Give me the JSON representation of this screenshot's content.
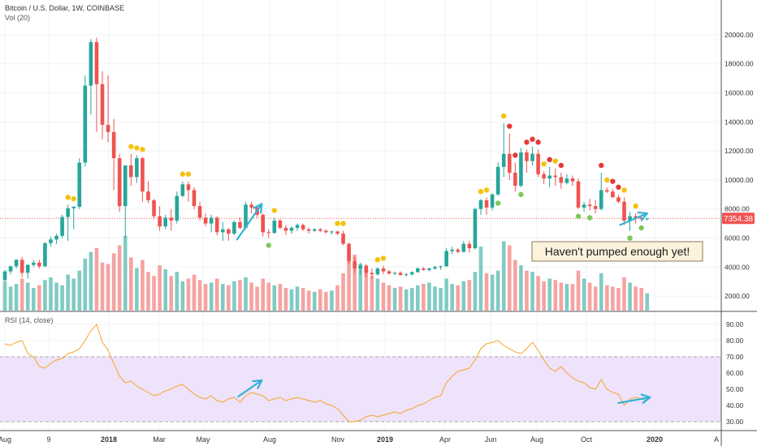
{
  "header": {
    "symbol_line": "Bitcoin / U.S. Dollar, 1W, COINBASE",
    "volume_label": "Vol (20)",
    "rsi_label": "RSI (14, close)"
  },
  "price_badge": "7354.38",
  "annotation": "Haven't pumped enough yet!",
  "colors": {
    "up": "#26a69a",
    "down": "#ef5350",
    "up_volume": "#80cbc4",
    "down_volume": "#f6a3a1",
    "rsi_line": "#f5a623",
    "rsi_band": "#efe2fb",
    "price_line": "#ef5350",
    "arrow": "#2fb3d6",
    "dot_yellow": "#f4c20d",
    "dot_red": "#e53935",
    "dot_green": "#7bc95a"
  },
  "chart_data": [
    {
      "type": "candlestick",
      "title": "Bitcoin / U.S. Dollar, 1W, COINBASE",
      "x_tick_labels": [
        "Aug",
        "9",
        "2018",
        "Mar",
        "May",
        "Aug",
        "Nov",
        "2019",
        "Apr",
        "Jun",
        "Aug",
        "Oct",
        "2020",
        "A"
      ],
      "y_tick_labels": [
        "2000.00",
        "4000.00",
        "6000.00",
        "8000.00",
        "10000.00",
        "12000.00",
        "14000.00",
        "16000.00",
        "18000.00",
        "20000.00"
      ],
      "ylim": [
        1000,
        22400
      ],
      "last_price": 7354.38,
      "ohlc": [
        [
          3100,
          3800,
          3000,
          3700
        ],
        [
          3700,
          4100,
          3500,
          4050
        ],
        [
          4050,
          4550,
          3900,
          4500
        ],
        [
          4500,
          4700,
          3300,
          3600
        ],
        [
          3600,
          4200,
          3200,
          4150
        ],
        [
          4150,
          4500,
          4000,
          4300
        ],
        [
          4300,
          4500,
          3900,
          4050
        ],
        [
          4050,
          5700,
          4000,
          5650
        ],
        [
          5650,
          6100,
          5400,
          5900
        ],
        [
          5900,
          6300,
          5600,
          6150
        ],
        [
          6150,
          7600,
          6000,
          7450
        ],
        [
          7450,
          8300,
          5800,
          8050
        ],
        [
          8050,
          8200,
          6600,
          8150
        ],
        [
          8150,
          11500,
          8000,
          11200
        ],
        [
          11200,
          17200,
          10900,
          16500
        ],
        [
          16500,
          19700,
          14500,
          19500
        ],
        [
          19500,
          19800,
          13300,
          16600
        ],
        [
          16600,
          17500,
          12800,
          13800
        ],
        [
          13800,
          17200,
          12600,
          13300
        ],
        [
          13300,
          14200,
          9300,
          11500
        ],
        [
          11500,
          11800,
          7800,
          8200
        ],
        [
          8200,
          11000,
          6000,
          11000
        ],
        [
          11000,
          11800,
          9600,
          10200
        ],
        [
          10200,
          11700,
          9800,
          11500
        ],
        [
          11500,
          11600,
          8500,
          9200
        ],
        [
          9200,
          9900,
          8400,
          8600
        ],
        [
          8600,
          8700,
          7300,
          7500
        ],
        [
          7500,
          8200,
          6500,
          6800
        ],
        [
          6800,
          7600,
          6600,
          7400
        ],
        [
          7400,
          8000,
          6500,
          7200
        ],
        [
          7200,
          9200,
          7000,
          8900
        ],
        [
          8900,
          9900,
          8800,
          9700
        ],
        [
          9700,
          9900,
          8500,
          9300
        ],
        [
          9300,
          9500,
          8000,
          8200
        ],
        [
          8200,
          8500,
          7200,
          7400
        ],
        [
          7400,
          7700,
          6800,
          7000
        ],
        [
          7000,
          7600,
          6400,
          7400
        ],
        [
          7400,
          7500,
          6200,
          6400
        ],
        [
          6400,
          7100,
          5800,
          6600
        ],
        [
          6600,
          6700,
          5800,
          6300
        ],
        [
          6300,
          7200,
          6200,
          7100
        ],
        [
          7100,
          7400,
          6600,
          6700
        ],
        [
          6700,
          8500,
          6600,
          8300
        ],
        [
          8300,
          8500,
          7700,
          8100
        ],
        [
          8100,
          8200,
          7400,
          7600
        ],
        [
          7600,
          7700,
          6100,
          6400
        ],
        [
          6400,
          6600,
          6000,
          6350
        ],
        [
          6350,
          7400,
          6300,
          7200
        ],
        [
          7200,
          7300,
          6600,
          6700
        ],
        [
          6700,
          6900,
          6200,
          6500
        ],
        [
          6500,
          6800,
          6300,
          6700
        ],
        [
          6700,
          7000,
          6500,
          6900
        ],
        [
          6900,
          7000,
          6500,
          6600
        ],
        [
          6600,
          6700,
          6300,
          6500
        ],
        [
          6500,
          6700,
          6400,
          6600
        ],
        [
          6600,
          6700,
          6400,
          6500
        ],
        [
          6500,
          6600,
          6300,
          6400
        ],
        [
          6400,
          6500,
          6250,
          6450
        ],
        [
          6450,
          6500,
          6200,
          6300
        ],
        [
          6300,
          6500,
          5500,
          5600
        ],
        [
          5600,
          5700,
          4200,
          4400
        ],
        [
          4400,
          4700,
          3600,
          3900
        ],
        [
          3900,
          4300,
          3500,
          4100
        ],
        [
          4100,
          4200,
          3300,
          3600
        ],
        [
          3600,
          3900,
          3200,
          3500
        ],
        [
          3500,
          4000,
          3400,
          3900
        ],
        [
          3900,
          4100,
          3500,
          3700
        ],
        [
          3700,
          3800,
          3500,
          3550
        ],
        [
          3550,
          3700,
          3450,
          3600
        ],
        [
          3600,
          3700,
          3400,
          3450
        ],
        [
          3450,
          3600,
          3350,
          3500
        ],
        [
          3500,
          3700,
          3400,
          3650
        ],
        [
          3650,
          4000,
          3600,
          3900
        ],
        [
          3900,
          4000,
          3750,
          3800
        ],
        [
          3800,
          3950,
          3700,
          3900
        ],
        [
          3900,
          4100,
          3800,
          4000
        ],
        [
          4000,
          4100,
          3800,
          4050
        ],
        [
          4050,
          5300,
          4000,
          5100
        ],
        [
          5100,
          5400,
          4900,
          5200
        ],
        [
          5200,
          5300,
          4950,
          5050
        ],
        [
          5050,
          5800,
          5000,
          5600
        ],
        [
          5600,
          5800,
          5000,
          5300
        ],
        [
          5300,
          8100,
          5200,
          8000
        ],
        [
          8000,
          8700,
          7600,
          8600
        ],
        [
          8600,
          8800,
          7600,
          8100
        ],
        [
          8100,
          9100,
          7900,
          9000
        ],
        [
          9000,
          11200,
          8900,
          10900
        ],
        [
          10900,
          13900,
          10200,
          11800
        ],
        [
          11800,
          13200,
          10000,
          10500
        ],
        [
          10500,
          11200,
          9200,
          9600
        ],
        [
          9600,
          12200,
          9500,
          11900
        ],
        [
          11900,
          12100,
          10500,
          11300
        ],
        [
          11300,
          12300,
          11000,
          11800
        ],
        [
          11800,
          12100,
          10200,
          10400
        ],
        [
          10400,
          10600,
          9700,
          10100
        ],
        [
          10100,
          10900,
          9500,
          10300
        ],
        [
          10300,
          10800,
          9600,
          10200
        ],
        [
          10200,
          10500,
          9400,
          9800
        ],
        [
          9800,
          10400,
          9700,
          10100
        ],
        [
          10100,
          10300,
          9600,
          9900
        ],
        [
          9900,
          10100,
          8000,
          8100
        ],
        [
          8100,
          8500,
          7800,
          8300
        ],
        [
          8300,
          8700,
          7900,
          8200
        ],
        [
          8200,
          8600,
          7700,
          8000
        ],
        [
          8000,
          10500,
          7900,
          9300
        ],
        [
          9300,
          9500,
          9100,
          9200
        ],
        [
          9200,
          9400,
          8800,
          8800
        ],
        [
          8800,
          9000,
          8400,
          8500
        ],
        [
          8500,
          8800,
          6900,
          7200
        ],
        [
          7200,
          7800,
          6500,
          7500
        ],
        [
          7500,
          7700,
          7000,
          7400
        ],
        [
          7400,
          7600,
          7200,
          7300
        ],
        [
          7300,
          7400,
          7200,
          7354
        ]
      ],
      "volume": [
        22,
        18,
        20,
        24,
        21,
        17,
        19,
        23,
        25,
        21,
        19,
        27,
        24,
        30,
        39,
        44,
        47,
        36,
        35,
        43,
        49,
        56,
        40,
        32,
        38,
        29,
        26,
        34,
        31,
        26,
        29,
        22,
        24,
        27,
        23,
        20,
        21,
        24,
        20,
        19,
        22,
        23,
        25,
        21,
        18,
        24,
        21,
        19,
        20,
        17,
        16,
        18,
        17,
        15,
        14,
        16,
        14,
        15,
        19,
        28,
        46,
        42,
        35,
        30,
        26,
        24,
        21,
        19,
        17,
        18,
        16,
        17,
        19,
        20,
        21,
        18,
        17,
        24,
        20,
        19,
        22,
        23,
        29,
        48,
        28,
        27,
        30,
        52,
        49,
        38,
        34,
        30,
        29,
        26,
        22,
        24,
        23,
        21,
        20,
        20,
        30,
        24,
        21,
        18,
        28,
        19,
        18,
        17,
        25,
        21,
        18,
        17,
        13
      ],
      "signal_dots": [
        {
          "i": 11,
          "color": "yellow",
          "pos": "above"
        },
        {
          "i": 12,
          "color": "yellow",
          "pos": "above"
        },
        {
          "i": 22,
          "color": "yellow",
          "pos": "above"
        },
        {
          "i": 23,
          "color": "yellow",
          "pos": "above"
        },
        {
          "i": 24,
          "color": "yellow",
          "pos": "above"
        },
        {
          "i": 31,
          "color": "yellow",
          "pos": "above"
        },
        {
          "i": 32,
          "color": "yellow",
          "pos": "above"
        },
        {
          "i": 46,
          "color": "green",
          "pos": "below"
        },
        {
          "i": 47,
          "color": "yellow",
          "pos": "above"
        },
        {
          "i": 58,
          "color": "yellow",
          "pos": "above"
        },
        {
          "i": 59,
          "color": "yellow",
          "pos": "above"
        },
        {
          "i": 65,
          "color": "yellow",
          "pos": "above"
        },
        {
          "i": 66,
          "color": "yellow",
          "pos": "above"
        },
        {
          "i": 83,
          "color": "yellow",
          "pos": "above"
        },
        {
          "i": 84,
          "color": "yellow",
          "pos": "above"
        },
        {
          "i": 87,
          "color": "yellow",
          "pos": "above"
        },
        {
          "i": 88,
          "color": "red",
          "pos": "above"
        },
        {
          "i": 89,
          "color": "red",
          "pos": "above"
        },
        {
          "i": 86,
          "color": "green",
          "pos": "below"
        },
        {
          "i": 90,
          "color": "green",
          "pos": "below"
        },
        {
          "i": 91,
          "color": "red",
          "pos": "above"
        },
        {
          "i": 92,
          "color": "red",
          "pos": "above"
        },
        {
          "i": 93,
          "color": "red",
          "pos": "above"
        },
        {
          "i": 94,
          "color": "yellow",
          "pos": "above"
        },
        {
          "i": 95,
          "color": "red",
          "pos": "above"
        },
        {
          "i": 96,
          "color": "yellow",
          "pos": "above"
        },
        {
          "i": 97,
          "color": "red",
          "pos": "above"
        },
        {
          "i": 100,
          "color": "green",
          "pos": "below"
        },
        {
          "i": 102,
          "color": "green",
          "pos": "below"
        },
        {
          "i": 104,
          "color": "red",
          "pos": "above"
        },
        {
          "i": 105,
          "color": "yellow",
          "pos": "above"
        },
        {
          "i": 106,
          "color": "red",
          "pos": "above"
        },
        {
          "i": 107,
          "color": "red",
          "pos": "above"
        },
        {
          "i": 108,
          "color": "yellow",
          "pos": "above"
        },
        {
          "i": 109,
          "color": "green",
          "pos": "below"
        },
        {
          "i": 110,
          "color": "yellow",
          "pos": "above"
        },
        {
          "i": 111,
          "color": "green",
          "pos": "below"
        }
      ]
    },
    {
      "type": "line",
      "title": "RSI (14, close)",
      "y_tick_labels": [
        "30.00",
        "40.00",
        "50.00",
        "60.00",
        "70.00",
        "80.00",
        "90.00"
      ],
      "ylim": [
        25,
        96
      ],
      "band": [
        30,
        70
      ],
      "grid": true,
      "values": [
        78,
        77,
        79,
        80,
        72,
        70,
        64,
        63,
        66,
        68,
        69,
        72,
        73,
        75,
        80,
        86,
        90,
        79,
        74,
        66,
        58,
        54,
        55,
        52,
        50,
        48,
        46,
        47,
        49,
        50,
        52,
        53,
        50,
        47,
        45,
        44,
        46,
        43,
        42,
        44,
        45,
        42,
        46,
        48,
        47,
        46,
        43,
        44,
        45,
        43,
        44,
        45,
        44,
        43,
        42,
        43,
        41,
        40,
        38,
        34,
        30,
        30,
        31,
        33,
        34,
        33,
        34,
        35,
        36,
        35,
        37,
        38,
        40,
        41,
        43,
        45,
        46,
        54,
        58,
        61,
        62,
        63,
        68,
        75,
        78,
        79,
        80,
        77,
        75,
        73,
        72,
        75,
        79,
        74,
        68,
        63,
        61,
        64,
        60,
        57,
        55,
        54,
        51,
        50,
        56,
        50,
        48,
        47,
        40,
        44,
        45,
        44,
        43
      ]
    }
  ]
}
